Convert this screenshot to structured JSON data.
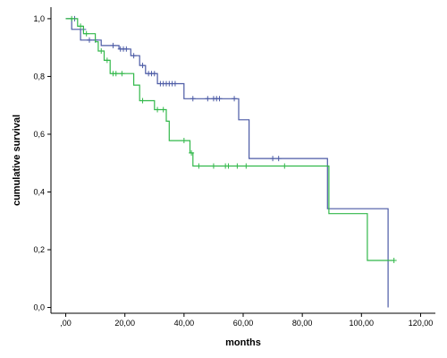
{
  "chart_data": {
    "type": "line",
    "xlabel": "months",
    "ylabel": "cumulative survival",
    "xlim": [
      -5,
      125
    ],
    "ylim": [
      -0.02,
      1.04
    ],
    "x_ticks": [
      0,
      20,
      40,
      60,
      80,
      100,
      120
    ],
    "x_tick_labels": [
      ",00",
      "20,00",
      "40,00",
      "60,00",
      "80,00",
      "100,00",
      "120,00"
    ],
    "y_ticks": [
      0,
      0.2,
      0.4,
      0.6,
      0.8,
      1.0
    ],
    "y_tick_labels": [
      "0,0",
      "0,2",
      "0,4",
      "0,6",
      "0,8",
      "1,0"
    ],
    "grid": false,
    "series": [
      {
        "color": "#4b5aa5",
        "steps": [
          [
            0,
            1.0
          ],
          [
            2,
            1.0
          ],
          [
            2,
            0.963
          ],
          [
            5,
            0.963
          ],
          [
            5,
            0.926
          ],
          [
            12,
            0.926
          ],
          [
            12,
            0.907
          ],
          [
            18,
            0.907
          ],
          [
            18,
            0.895
          ],
          [
            22,
            0.895
          ],
          [
            22,
            0.872
          ],
          [
            25,
            0.872
          ],
          [
            25,
            0.838
          ],
          [
            27,
            0.838
          ],
          [
            27,
            0.81
          ],
          [
            31,
            0.81
          ],
          [
            31,
            0.775
          ],
          [
            40,
            0.775
          ],
          [
            40,
            0.723
          ],
          [
            58.5,
            0.723
          ],
          [
            58.5,
            0.65
          ],
          [
            62,
            0.65
          ],
          [
            62,
            0.516
          ],
          [
            88.5,
            0.516
          ],
          [
            88.5,
            0.342
          ],
          [
            109,
            0.342
          ],
          [
            109,
            0.0
          ]
        ],
        "censored": [
          [
            3,
            1.0
          ],
          [
            6,
            0.963
          ],
          [
            8,
            0.926
          ],
          [
            10,
            0.926
          ],
          [
            16,
            0.907
          ],
          [
            18.5,
            0.895
          ],
          [
            19.5,
            0.895
          ],
          [
            20.5,
            0.895
          ],
          [
            23,
            0.872
          ],
          [
            26,
            0.838
          ],
          [
            28,
            0.81
          ],
          [
            29,
            0.81
          ],
          [
            30,
            0.81
          ],
          [
            32,
            0.775
          ],
          [
            33,
            0.775
          ],
          [
            34,
            0.775
          ],
          [
            35,
            0.775
          ],
          [
            36,
            0.775
          ],
          [
            37,
            0.775
          ],
          [
            43,
            0.723
          ],
          [
            48,
            0.723
          ],
          [
            50,
            0.723
          ],
          [
            51,
            0.723
          ],
          [
            52,
            0.723
          ],
          [
            57,
            0.723
          ],
          [
            70,
            0.516
          ],
          [
            72,
            0.516
          ]
        ]
      },
      {
        "color": "#32b84a",
        "steps": [
          [
            0,
            1.0
          ],
          [
            4,
            1.0
          ],
          [
            4,
            0.974
          ],
          [
            6,
            0.974
          ],
          [
            6,
            0.948
          ],
          [
            10,
            0.948
          ],
          [
            10,
            0.92
          ],
          [
            11,
            0.92
          ],
          [
            11,
            0.888
          ],
          [
            13,
            0.888
          ],
          [
            13,
            0.856
          ],
          [
            15,
            0.856
          ],
          [
            15,
            0.81
          ],
          [
            23,
            0.81
          ],
          [
            23,
            0.77
          ],
          [
            25,
            0.77
          ],
          [
            25,
            0.716
          ],
          [
            30,
            0.716
          ],
          [
            30,
            0.685
          ],
          [
            34,
            0.685
          ],
          [
            34,
            0.645
          ],
          [
            35,
            0.645
          ],
          [
            35,
            0.578
          ],
          [
            42,
            0.578
          ],
          [
            42,
            0.535
          ],
          [
            43,
            0.535
          ],
          [
            43,
            0.49
          ],
          [
            89,
            0.49
          ],
          [
            89,
            0.325
          ],
          [
            102,
            0.325
          ],
          [
            102,
            0.163
          ],
          [
            111,
            0.163
          ]
        ],
        "censored": [
          [
            2,
            1.0
          ],
          [
            5,
            0.974
          ],
          [
            7,
            0.948
          ],
          [
            12,
            0.888
          ],
          [
            14,
            0.856
          ],
          [
            16,
            0.81
          ],
          [
            17,
            0.81
          ],
          [
            19,
            0.81
          ],
          [
            26,
            0.716
          ],
          [
            31,
            0.685
          ],
          [
            33,
            0.685
          ],
          [
            40,
            0.578
          ],
          [
            42.5,
            0.535
          ],
          [
            45,
            0.49
          ],
          [
            50,
            0.49
          ],
          [
            54,
            0.49
          ],
          [
            55,
            0.49
          ],
          [
            58,
            0.49
          ],
          [
            61,
            0.49
          ],
          [
            74,
            0.49
          ],
          [
            111,
            0.163
          ]
        ]
      }
    ]
  }
}
